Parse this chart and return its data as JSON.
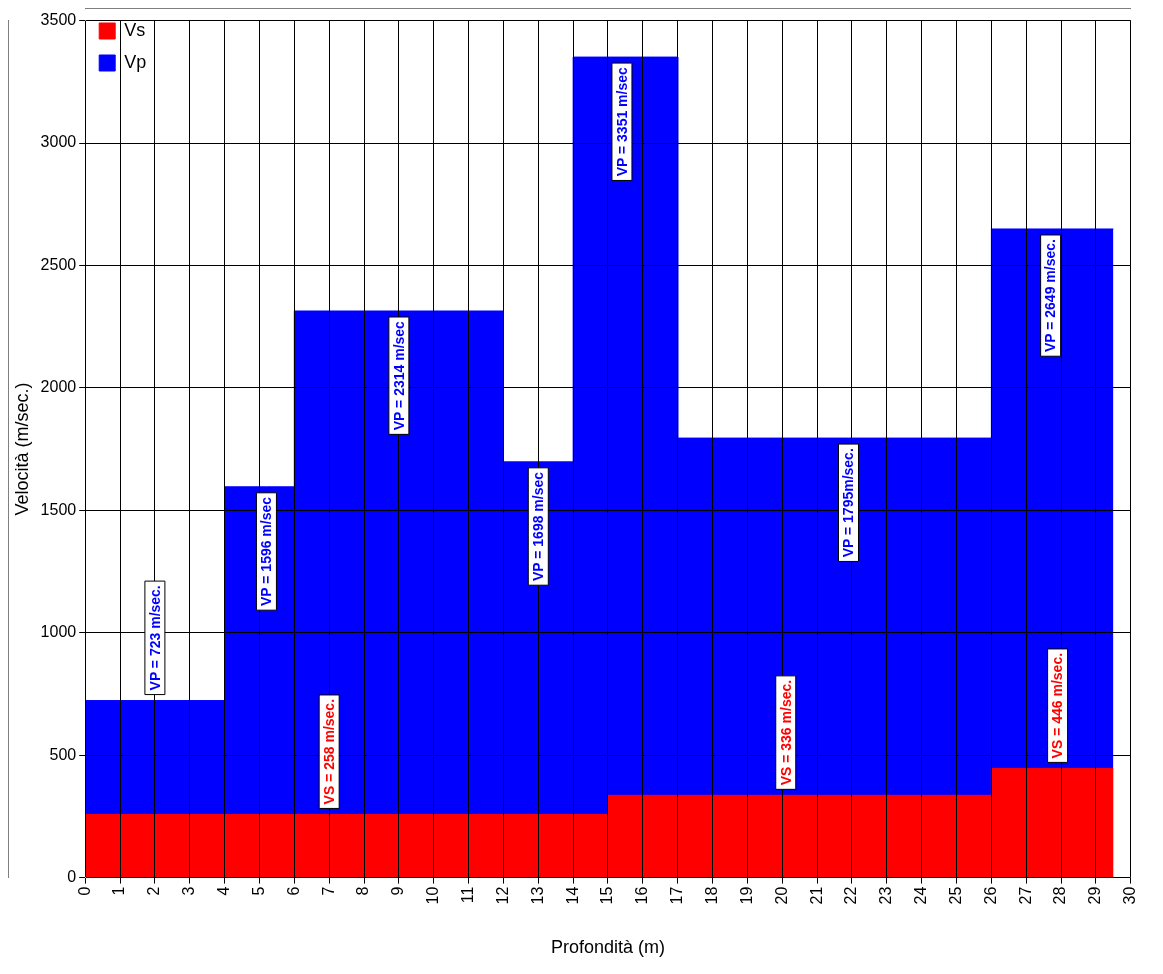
{
  "chart_data": {
    "type": "area",
    "xlabel": "Profondità (m)",
    "ylabel": "Velocità (m/sec.)",
    "xlim": [
      0,
      30
    ],
    "xticks": [
      0,
      1,
      2,
      3,
      4,
      5,
      6,
      7,
      8,
      9,
      10,
      11,
      12,
      13,
      14,
      15,
      16,
      17,
      18,
      19,
      20,
      21,
      22,
      23,
      24,
      25,
      26,
      27,
      28,
      29,
      30
    ],
    "ylim": [
      0,
      3500
    ],
    "yticks": [
      0,
      500,
      1000,
      1500,
      2000,
      2500,
      3000,
      3500
    ],
    "grid": true,
    "legend": "top left",
    "series": [
      {
        "name": "Vp",
        "color": "#0000ff",
        "x": [
          0,
          2,
          4,
          4,
          5.2,
          6,
          6,
          9,
          12,
          12,
          13,
          14,
          14,
          15.4,
          17,
          17,
          21.9,
          26,
          26,
          27.7,
          29.5
        ],
        "values": [
          723,
          723,
          723,
          1596,
          1596,
          1596,
          2314,
          2314,
          2314,
          1698,
          1698,
          1698,
          3351,
          3351,
          3351,
          1795,
          1795,
          1795,
          2649,
          2649,
          2649
        ],
        "value_labels": [
          null,
          "VP = 723 m/sec.",
          null,
          null,
          "VP = 1596 m/sec",
          null,
          null,
          "VP = 2314 m/sec",
          null,
          null,
          "VP = 1698 m/sec",
          null,
          null,
          "VP = 3351 m/sec",
          null,
          null,
          "VP = 1795m/sec.",
          null,
          null,
          "VP = 2649 m/sec.",
          null
        ]
      },
      {
        "name": "Vs",
        "color": "#ff0000",
        "x": [
          0,
          7,
          15,
          15,
          20.1,
          26,
          26,
          27.9,
          29.5
        ],
        "values": [
          258,
          258,
          258,
          336,
          336,
          336,
          446,
          446,
          446
        ],
        "value_labels": [
          null,
          "VS = 258 m/sec.",
          null,
          null,
          "VS = 336 m/sec.",
          null,
          null,
          "VS = 446 m/sec.",
          null
        ]
      }
    ]
  }
}
